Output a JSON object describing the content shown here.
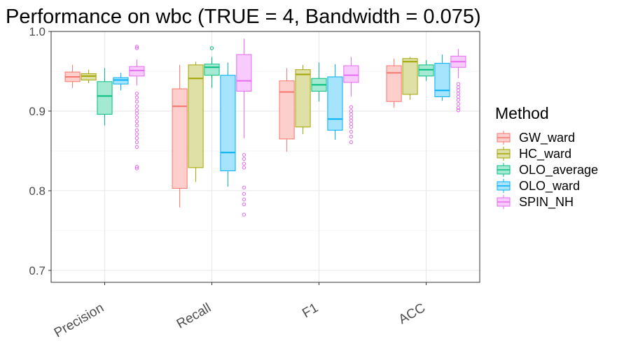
{
  "chart_data": {
    "type": "box",
    "title": "Performance on wbc (TRUE = 4, Bandwidth = 0.075)",
    "xlabel": "",
    "ylabel": "",
    "categories": [
      "Precision",
      "Recall",
      "F1",
      "ACC"
    ],
    "ylim": [
      0.685,
      1.0
    ],
    "yticks": [
      0.7,
      0.8,
      0.9,
      1.0
    ],
    "ytick_labels": [
      "0.7",
      "0.8",
      "0.9",
      "1.0"
    ],
    "grid": true,
    "legend": {
      "title": "Method",
      "position": "right"
    },
    "series": [
      {
        "name": "GW_ward",
        "color": "#F8766D",
        "boxes": [
          {
            "min": 0.929,
            "q1": 0.937,
            "median": 0.943,
            "q3": 0.949,
            "max": 0.958,
            "outliers": []
          },
          {
            "min": 0.779,
            "q1": 0.803,
            "median": 0.906,
            "q3": 0.928,
            "max": 0.958,
            "outliers": []
          },
          {
            "min": 0.849,
            "q1": 0.865,
            "median": 0.924,
            "q3": 0.938,
            "max": 0.954,
            "outliers": []
          },
          {
            "min": 0.904,
            "q1": 0.912,
            "median": 0.948,
            "q3": 0.957,
            "max": 0.966,
            "outliers": []
          }
        ]
      },
      {
        "name": "HC_ward",
        "color": "#A3A500",
        "boxes": [
          {
            "min": 0.935,
            "q1": 0.939,
            "median": 0.944,
            "q3": 0.947,
            "max": 0.952,
            "outliers": []
          },
          {
            "min": 0.811,
            "q1": 0.829,
            "median": 0.941,
            "q3": 0.958,
            "max": 0.962,
            "outliers": []
          },
          {
            "min": 0.871,
            "q1": 0.88,
            "median": 0.946,
            "q3": 0.952,
            "max": 0.958,
            "outliers": []
          },
          {
            "min": 0.914,
            "q1": 0.921,
            "median": 0.962,
            "q3": 0.966,
            "max": 0.968,
            "outliers": []
          }
        ]
      },
      {
        "name": "OLO_average",
        "color": "#00BF7D",
        "boxes": [
          {
            "min": 0.882,
            "q1": 0.896,
            "median": 0.919,
            "q3": 0.937,
            "max": 0.954,
            "outliers": []
          },
          {
            "min": 0.929,
            "q1": 0.945,
            "median": 0.955,
            "q3": 0.959,
            "max": 0.968,
            "outliers": [
              0.979
            ]
          },
          {
            "min": 0.912,
            "q1": 0.925,
            "median": 0.933,
            "q3": 0.941,
            "max": 0.961,
            "outliers": []
          },
          {
            "min": 0.938,
            "q1": 0.944,
            "median": 0.952,
            "q3": 0.958,
            "max": 0.964,
            "outliers": []
          }
        ]
      },
      {
        "name": "OLO_ward",
        "color": "#00B0F6",
        "boxes": [
          {
            "min": 0.926,
            "q1": 0.934,
            "median": 0.939,
            "q3": 0.942,
            "max": 0.948,
            "outliers": []
          },
          {
            "min": 0.805,
            "q1": 0.825,
            "median": 0.848,
            "q3": 0.945,
            "max": 0.961,
            "outliers": []
          },
          {
            "min": 0.864,
            "q1": 0.876,
            "median": 0.89,
            "q3": 0.943,
            "max": 0.959,
            "outliers": []
          },
          {
            "min": 0.913,
            "q1": 0.918,
            "median": 0.926,
            "q3": 0.96,
            "max": 0.971,
            "outliers": []
          }
        ]
      },
      {
        "name": "SPIN_NH",
        "color": "#E76BF3",
        "boxes": [
          {
            "min": 0.932,
            "q1": 0.944,
            "median": 0.951,
            "q3": 0.956,
            "max": 0.965,
            "outliers": [
              0.981,
              0.979,
              0.922,
              0.917,
              0.912,
              0.906,
              0.901,
              0.897,
              0.892,
              0.887,
              0.882,
              0.876,
              0.871,
              0.866,
              0.861,
              0.855,
              0.83,
              0.828
            ]
          },
          {
            "min": 0.866,
            "q1": 0.925,
            "median": 0.938,
            "q3": 0.971,
            "max": 0.991,
            "outliers": [
              0.845,
              0.84,
              0.834,
              0.829,
              0.804,
              0.796,
              0.789,
              0.783,
              0.77
            ]
          },
          {
            "min": 0.918,
            "q1": 0.936,
            "median": 0.945,
            "q3": 0.957,
            "max": 0.968,
            "outliers": [
              0.905,
              0.9,
              0.896,
              0.892,
              0.888,
              0.884,
              0.88,
              0.874,
              0.868,
              0.861
            ]
          },
          {
            "min": 0.941,
            "q1": 0.955,
            "median": 0.962,
            "q3": 0.969,
            "max": 0.978,
            "outliers": [
              0.934,
              0.93,
              0.926,
              0.922,
              0.918,
              0.914,
              0.909,
              0.904,
              0.901
            ]
          }
        ]
      }
    ]
  }
}
